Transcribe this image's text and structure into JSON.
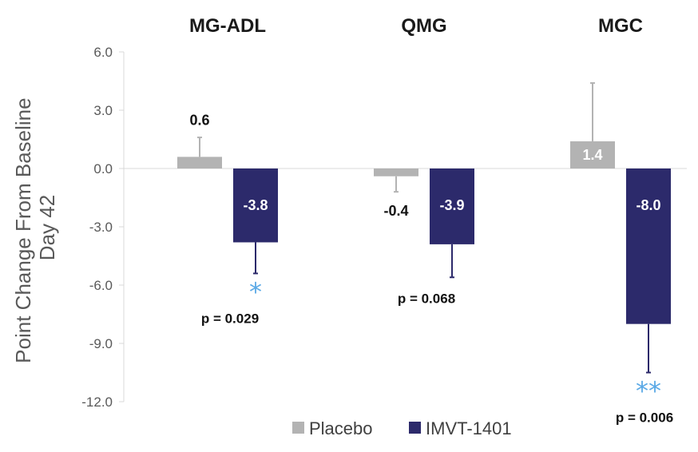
{
  "chart_data": {
    "type": "bar",
    "categories": [
      "MG-ADL",
      "QMG",
      "MGC"
    ],
    "series": [
      {
        "name": "Placebo",
        "color": "#b3b3b3",
        "values": [
          0.6,
          -0.4,
          1.4
        ],
        "labels": [
          "0.6",
          "-0.4",
          "1.4"
        ],
        "error_upper": [
          1.6,
          null,
          4.4
        ],
        "error_lower": [
          null,
          -1.2,
          null
        ]
      },
      {
        "name": "IMVT-1401",
        "color": "#2c2a6b",
        "values": [
          -3.8,
          -3.9,
          -8.0
        ],
        "labels": [
          "-3.8",
          "-3.9",
          "-8.0"
        ],
        "error_upper": [
          null,
          null,
          null
        ],
        "error_lower": [
          -5.4,
          -5.6,
          -10.5
        ]
      }
    ],
    "significance": [
      {
        "category": "MG-ADL",
        "marker": "*",
        "p_value": "p = 0.029"
      },
      {
        "category": "QMG",
        "marker": "",
        "p_value": "p = 0.068"
      },
      {
        "category": "MGC",
        "marker": "**",
        "p_value": "p = 0.006"
      }
    ],
    "ylabel_line1": "Point Change From Baseline",
    "ylabel_line2": "Day 42",
    "ylim": [
      -12.0,
      6.0
    ],
    "yticks": [
      "6.0",
      "3.0",
      "0.0",
      "-3.0",
      "-6.0",
      "-9.0",
      "-12.0"
    ],
    "ytick_values": [
      6,
      3,
      0,
      -3,
      -6,
      -9,
      -12
    ],
    "legend_position": "bottom",
    "grid": false,
    "star_color": "#5aa9e6"
  }
}
